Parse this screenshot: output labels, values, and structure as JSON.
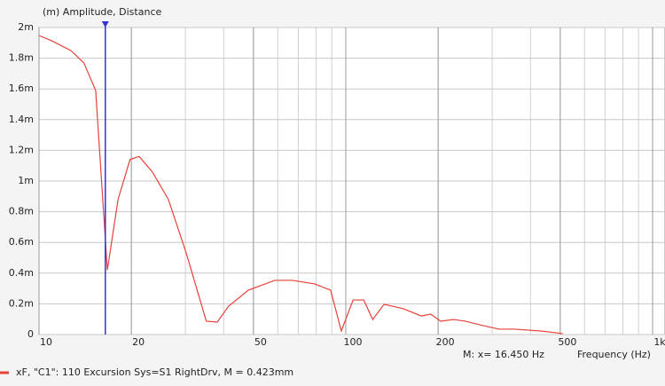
{
  "chart_data": {
    "type": "line",
    "title": "(m)  Amplitude, Distance",
    "x_label": "Frequency  (Hz)",
    "log_x": true,
    "grid": true,
    "minor_grid": true,
    "xlim": [
      10,
      1000
    ],
    "xticks": [
      10,
      20,
      50,
      100,
      200,
      500,
      {
        "value": 1000,
        "label": "1k"
      }
    ],
    "ylim": [
      0,
      0.002
    ],
    "yticks": [
      {
        "value": 0,
        "label": "0"
      },
      {
        "value": 0.0002,
        "label": "0.2m"
      },
      {
        "value": 0.0004,
        "label": "0.4m"
      },
      {
        "value": 0.0006,
        "label": "0.6m"
      },
      {
        "value": 0.0008,
        "label": "0.8m"
      },
      {
        "value": 0.001,
        "label": "1m"
      },
      {
        "value": 0.0012,
        "label": "1.2m"
      },
      {
        "value": 0.0014,
        "label": "1.4m"
      },
      {
        "value": 0.0016,
        "label": "1.6m"
      },
      {
        "value": 0.0018,
        "label": "1.8m"
      },
      {
        "value": 0.002,
        "label": "2m"
      }
    ],
    "marker": {
      "x": 16.45,
      "label": "M:  x= 16.450 Hz",
      "color": "#3434d8"
    },
    "series": [
      {
        "name": "xF, \"C1\": 110 Excursion Sys=S1 RightDrv, M = 0.423mm",
        "color": "#e8413a",
        "x": [
          10,
          11.1,
          12.7,
          14.0,
          15.3,
          16.7,
          18.1,
          19.8,
          21.2,
          23.4,
          26.4,
          30.2,
          35.1,
          38.1,
          41.5,
          48.1,
          58.7,
          67.0,
          79.1,
          89.2,
          96.7,
          105.6,
          114.4,
          122.4,
          133.3,
          154.0,
          176.2,
          189.4,
          203.7,
          224.9,
          245.2,
          280.3,
          316.0,
          353.7,
          431.6,
          509.0
        ],
        "values": [
          0.001948,
          0.00191,
          0.00185,
          0.00177,
          0.00159,
          0.00042,
          0.00088,
          0.00114,
          0.00116,
          0.00106,
          0.00088,
          0.00053,
          8.7e-05,
          8.1e-05,
          0.000185,
          0.000289,
          0.000353,
          0.000353,
          0.00033,
          0.000289,
          2.3e-05,
          0.000225,
          0.000225,
          9.8e-05,
          0.000197,
          0.000168,
          0.000121,
          0.000133,
          8.7e-05,
          9.8e-05,
          8.7e-05,
          5.8e-05,
          3.5e-05,
          3.5e-05,
          2.3e-05,
          6e-06
        ]
      }
    ]
  }
}
